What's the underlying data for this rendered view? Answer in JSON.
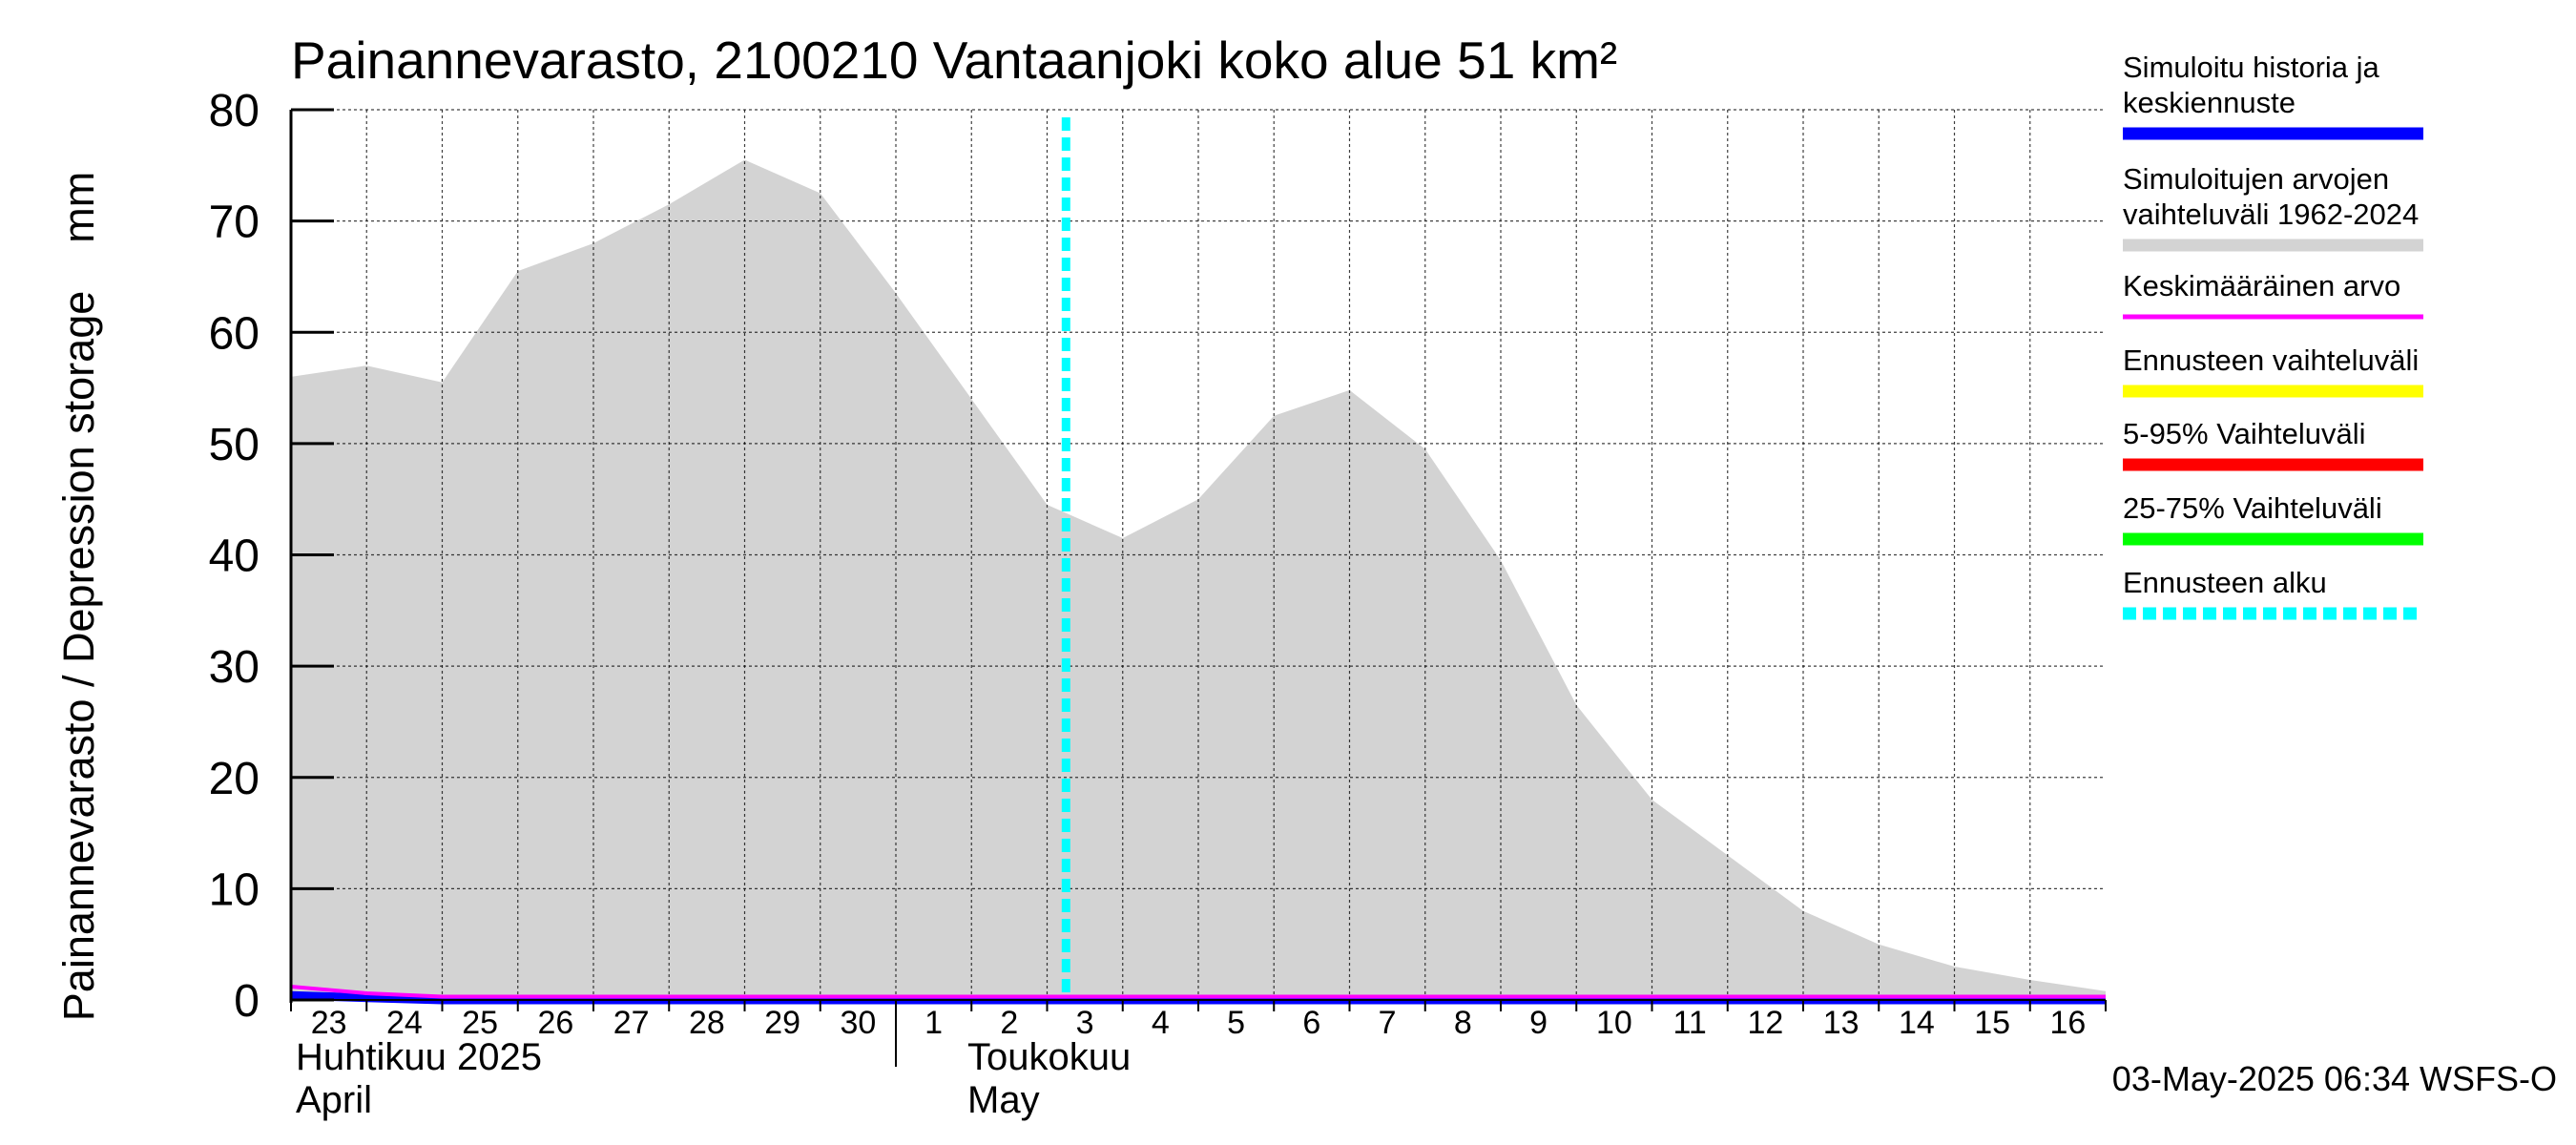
{
  "chart_data": {
    "type": "area",
    "title": "Painannevarasto, 2100210 Vantaanjoki koko alue 51 km²",
    "ylabel": "Painannevarasto / Depression storage    mm",
    "ylim": [
      0,
      80
    ],
    "yticks": [
      0,
      10,
      20,
      30,
      40,
      50,
      60,
      70,
      80
    ],
    "xlim": [
      "2025-04-23",
      "2025-05-17"
    ],
    "x_tick_labels": [
      "23",
      "24",
      "25",
      "26",
      "27",
      "28",
      "29",
      "30",
      "1",
      "2",
      "3",
      "4",
      "5",
      "6",
      "7",
      "8",
      "9",
      "10",
      "11",
      "12",
      "13",
      "14",
      "15",
      "16"
    ],
    "month_labels": [
      {
        "fi": "Huhtikuu  2025",
        "en": "April"
      },
      {
        "fi": "Toukokuu",
        "en": "May"
      }
    ],
    "grid": true,
    "legend_position": "right",
    "legend": [
      {
        "label": "Simuloitu historia ja keskiennuste",
        "color": "#0000ff",
        "style": "solid"
      },
      {
        "label": "Simuloitujen arvojen vaihteluväli 1962-2024",
        "color": "#d3d3d3",
        "style": "solid"
      },
      {
        "label": "Keskimääräinen arvo",
        "color": "#ff00ff",
        "style": "solid"
      },
      {
        "label": "Ennusteen vaihteluväli",
        "color": "#ffff00",
        "style": "solid"
      },
      {
        "label": "5-95% Vaihteluväli",
        "color": "#ff0000",
        "style": "solid"
      },
      {
        "label": "25-75% Vaihteluväli",
        "color": "#00ff00",
        "style": "solid"
      },
      {
        "label": "Ennusteen alku",
        "color": "#00ffff",
        "style": "dotted"
      }
    ],
    "series": [
      {
        "name": "Simuloitujen arvojen vaihteluväli 1962-2024",
        "kind": "band",
        "color": "#d3d3d3",
        "x": [
          "2025-04-23",
          "2025-04-24",
          "2025-04-25",
          "2025-04-26",
          "2025-04-27",
          "2025-04-28",
          "2025-04-29",
          "2025-04-30",
          "2025-05-01",
          "2025-05-02",
          "2025-05-03",
          "2025-05-04",
          "2025-05-05",
          "2025-05-06",
          "2025-05-07",
          "2025-05-08",
          "2025-05-09",
          "2025-05-10",
          "2025-05-11",
          "2025-05-12",
          "2025-05-13",
          "2025-05-14",
          "2025-05-15",
          "2025-05-16",
          "2025-05-17"
        ],
        "upper": [
          56,
          57,
          55.5,
          65.5,
          68,
          71.5,
          75.5,
          72.5,
          63.5,
          54,
          44.5,
          41.5,
          45,
          52.5,
          54.8,
          49.5,
          39.5,
          26.5,
          18,
          13,
          8,
          5,
          3,
          1.8,
          0.8
        ],
        "lower": [
          0,
          0,
          0,
          0,
          0,
          0,
          0,
          0,
          0,
          0,
          0,
          0,
          0,
          0,
          0,
          0,
          0,
          0,
          0,
          0,
          0,
          0,
          0,
          0,
          0
        ]
      },
      {
        "name": "Simuloitu historia ja keskiennuste",
        "kind": "line",
        "color": "#0000ff",
        "x": [
          "2025-04-23",
          "2025-04-24",
          "2025-04-25",
          "2025-04-26",
          "2025-04-27",
          "2025-04-28",
          "2025-04-29",
          "2025-04-30",
          "2025-05-01",
          "2025-05-02",
          "2025-05-03",
          "2025-05-04",
          "2025-05-05",
          "2025-05-06",
          "2025-05-07",
          "2025-05-08",
          "2025-05-09",
          "2025-05-10",
          "2025-05-11",
          "2025-05-12",
          "2025-05-13",
          "2025-05-14",
          "2025-05-15",
          "2025-05-16",
          "2025-05-17"
        ],
        "values": [
          0.4,
          0.2,
          0,
          0,
          0,
          0,
          0,
          0,
          0,
          0,
          0,
          0,
          0,
          0,
          0,
          0,
          0,
          0,
          0,
          0,
          0,
          0,
          0,
          0,
          0
        ]
      },
      {
        "name": "Keskimääräinen arvo",
        "kind": "line",
        "color": "#ff00ff",
        "x": [
          "2025-04-23",
          "2025-04-24",
          "2025-04-25",
          "2025-04-26",
          "2025-04-27",
          "2025-04-28",
          "2025-04-29",
          "2025-04-30",
          "2025-05-01",
          "2025-05-02",
          "2025-05-03",
          "2025-05-04",
          "2025-05-05",
          "2025-05-06",
          "2025-05-07",
          "2025-05-08",
          "2025-05-09",
          "2025-05-10",
          "2025-05-11",
          "2025-05-12",
          "2025-05-13",
          "2025-05-14",
          "2025-05-15",
          "2025-05-16",
          "2025-05-17"
        ],
        "values": [
          1.2,
          0.6,
          0.3,
          0.3,
          0.3,
          0.3,
          0.3,
          0.3,
          0.3,
          0.3,
          0.3,
          0.3,
          0.3,
          0.3,
          0.3,
          0.3,
          0.3,
          0.3,
          0.3,
          0.3,
          0.3,
          0.3,
          0.3,
          0.3,
          0.3
        ]
      }
    ],
    "forecast_start": "2025-05-03T06:00"
  },
  "footer": {
    "timestamp": "03-May-2025 06:34 WSFS-O"
  }
}
